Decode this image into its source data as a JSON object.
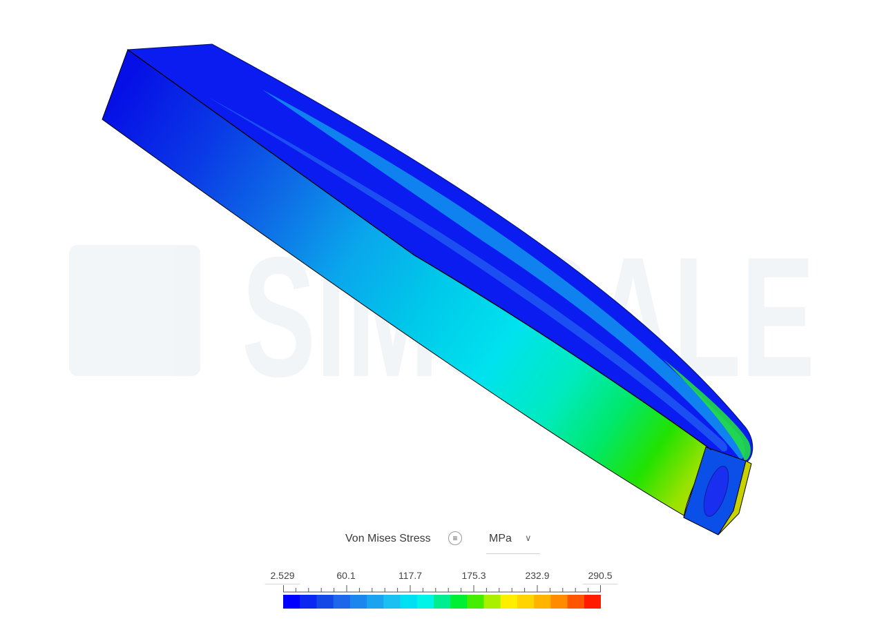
{
  "legend": {
    "title": "Von Mises Stress",
    "menu_icon": "list-icon",
    "unit": "MPa",
    "chevron_icon": "chevron-down-icon",
    "tick_labels": [
      "2.529",
      "60.1",
      "117.7",
      "175.3",
      "232.9",
      "290.5"
    ],
    "colors": [
      "#0000ff",
      "#0a28f0",
      "#1448e6",
      "#1e66ea",
      "#1a86ee",
      "#1aa4f0",
      "#1ac0f2",
      "#00e0f2",
      "#00f4e8",
      "#00ee90",
      "#00ee33",
      "#44ee00",
      "#a8f000",
      "#ffee00",
      "#ffd400",
      "#ffb400",
      "#ff8c00",
      "#ff5400",
      "#ff1a00"
    ]
  },
  "watermark": "SIMSCALE"
}
